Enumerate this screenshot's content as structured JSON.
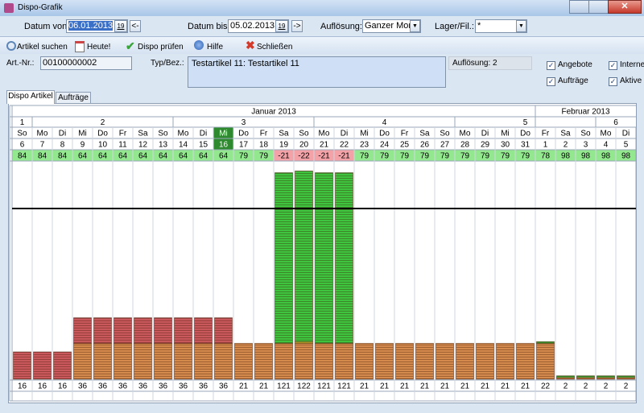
{
  "window": {
    "title": "Dispo-Grafik"
  },
  "filter": {
    "date_from_label": "Datum von:",
    "date_from": "06.01.2013",
    "calendar_icon": "19",
    "prev_button": "<-",
    "date_to_label": "Datum bis:",
    "date_to": "05.02.2013",
    "next_button": "->",
    "resolution_label": "Auflösung:",
    "resolution": "Ganzer Monat",
    "store_label": "Lager/Fil.:",
    "store": "*"
  },
  "toolbar": [
    "Artikel suchen",
    "Heute!",
    "Dispo prüfen",
    "Hilfe",
    "Schließen"
  ],
  "article": {
    "number_label": "Art.-Nr.:",
    "number": "00100000002",
    "type_label": "Typ/Bez.:",
    "type": "Testartikel 11: Testartikel 11",
    "resolution_info": "Auflösung: 2",
    "checkboxes": [
      {
        "label": "Angebote",
        "checked": true
      },
      {
        "label": "Interne",
        "checked": true
      },
      {
        "label": "Aufträge",
        "checked": true
      },
      {
        "label": "Aktive",
        "checked": true
      }
    ]
  },
  "tabs": [
    {
      "label": "Dispo Artikel",
      "active": true
    },
    {
      "label": "Aufträge",
      "active": false
    }
  ],
  "grid": {
    "months": [
      "Januar 2013",
      "Februar 2013"
    ],
    "weeks": [
      1,
      2,
      3,
      4,
      5,
      6
    ],
    "weekdays": [
      "So",
      "Mo",
      "Di",
      "Mi",
      "Do",
      "Fr",
      "Sa",
      "So",
      "Mo",
      "Di",
      "Mi",
      "Do",
      "Fr",
      "Sa",
      "So",
      "Mo",
      "Di",
      "Mi",
      "Do",
      "Fr",
      "Sa",
      "So",
      "Mo",
      "Di",
      "Mi",
      "Do",
      "Fr",
      "Sa",
      "So",
      "Mo",
      "Di"
    ],
    "days": [
      6,
      7,
      8,
      9,
      10,
      11,
      12,
      13,
      14,
      15,
      16,
      17,
      18,
      19,
      20,
      21,
      22,
      23,
      24,
      25,
      26,
      27,
      28,
      29,
      30,
      31,
      1,
      2,
      3,
      4,
      5
    ],
    "today": [
      false,
      false,
      false,
      false,
      false,
      false,
      false,
      false,
      false,
      false,
      true,
      false,
      false,
      false,
      false,
      false,
      false,
      false,
      false,
      false,
      false,
      false,
      false,
      false,
      false,
      false,
      false,
      false,
      false,
      false,
      false
    ],
    "stock": [
      84,
      84,
      84,
      64,
      64,
      64,
      64,
      64,
      64,
      64,
      64,
      79,
      79,
      -21,
      -22,
      -21,
      -21,
      79,
      79,
      79,
      79,
      79,
      79,
      79,
      79,
      79,
      78,
      98,
      98,
      98,
      98
    ],
    "series": [
      {
        "color": "#d48a4c",
        "values": [
          0,
          0,
          0,
          21,
          21,
          21,
          21,
          21,
          21,
          21,
          21,
          21,
          21,
          21,
          21,
          21,
          21,
          21,
          21,
          21,
          21,
          21,
          21,
          21,
          21,
          21,
          21,
          1,
          1,
          1,
          1
        ]
      },
      {
        "color": "#c9585c",
        "values": [
          16,
          16,
          16,
          15,
          15,
          15,
          15,
          15,
          15,
          15,
          15,
          0,
          0,
          0,
          0,
          0,
          0,
          0,
          0,
          0,
          0,
          0,
          0,
          0,
          0,
          0,
          0,
          0,
          0,
          0,
          0
        ]
      },
      {
        "color": "#e8e03c",
        "values": [
          0,
          0,
          0,
          0,
          0,
          0,
          0,
          0,
          0,
          0,
          0,
          0,
          0,
          0,
          1,
          0,
          0,
          0,
          0,
          0,
          0,
          0,
          0,
          0,
          0,
          0,
          0,
          0,
          0,
          0,
          0
        ]
      },
      {
        "color": "#3fc43f",
        "values": [
          0,
          0,
          0,
          0,
          0,
          0,
          0,
          0,
          0,
          0,
          0,
          0,
          0,
          100,
          100,
          100,
          100,
          0,
          0,
          0,
          0,
          0,
          0,
          0,
          0,
          0,
          1,
          1,
          1,
          1,
          1
        ]
      }
    ],
    "reference_line": 100,
    "totals": [
      16,
      16,
      16,
      36,
      36,
      36,
      36,
      36,
      36,
      36,
      36,
      21,
      21,
      121,
      122,
      121,
      121,
      21,
      21,
      21,
      21,
      21,
      21,
      21,
      21,
      21,
      22,
      2,
      2,
      2,
      2
    ]
  }
}
